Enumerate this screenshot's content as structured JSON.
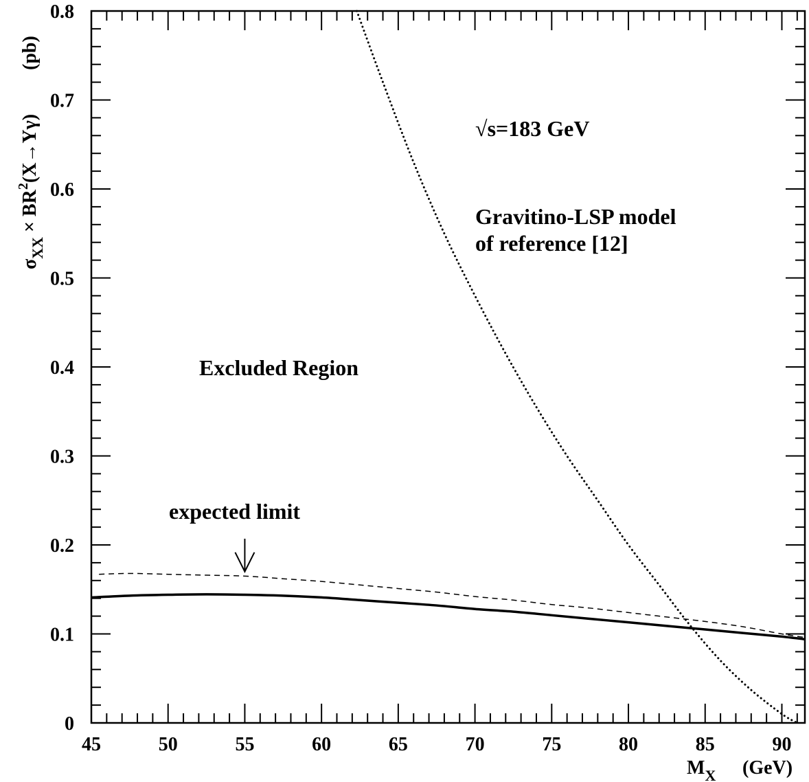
{
  "chart_data": {
    "type": "line",
    "xlabel_main": "M",
    "xlabel_sub": "X",
    "xlabel_unit": "(GeV)",
    "ylabel": {
      "sigma": "σ",
      "sigma_sub": "XX",
      "times_br": " × BR",
      "sup": "2",
      "decay": "(X→Yγ)",
      "unit": "(pb)"
    },
    "xlim": [
      45,
      91.5
    ],
    "ylim": [
      0,
      0.8
    ],
    "x_ticks": [
      45,
      50,
      55,
      60,
      65,
      70,
      75,
      80,
      85,
      90
    ],
    "y_ticks": [
      0,
      0.1,
      0.2,
      0.3,
      0.4,
      0.5,
      0.6,
      0.7,
      0.8
    ],
    "x_tick_labels": [
      "45",
      "50",
      "55",
      "60",
      "65",
      "70",
      "75",
      "80",
      "85",
      "90"
    ],
    "y_tick_labels": [
      "0",
      "0.1",
      "0.2",
      "0.3",
      "0.4",
      "0.5",
      "0.6",
      "0.7",
      "0.8"
    ],
    "series": [
      {
        "style": "solid",
        "x": [
          45,
          47.5,
          50,
          52.5,
          55,
          57.5,
          60,
          62.5,
          65,
          67.5,
          70,
          72.5,
          75,
          77.5,
          80,
          82.5,
          85,
          87.5,
          90,
          91.5
        ],
        "y": [
          0.141,
          0.143,
          0.144,
          0.1445,
          0.144,
          0.143,
          0.141,
          0.138,
          0.135,
          0.132,
          0.128,
          0.125,
          0.121,
          0.117,
          0.113,
          0.109,
          0.105,
          0.101,
          0.097,
          0.094
        ]
      },
      {
        "style": "dashed",
        "label": "expected limit",
        "x": [
          45.5,
          47.5,
          50,
          52.5,
          55,
          57.5,
          60,
          62.5,
          65,
          67.5,
          70,
          72.5,
          75,
          77.5,
          80,
          82.5,
          85,
          87.5,
          90,
          91.5
        ],
        "y": [
          0.167,
          0.168,
          0.167,
          0.166,
          0.165,
          0.162,
          0.159,
          0.155,
          0.151,
          0.147,
          0.142,
          0.138,
          0.133,
          0.129,
          0.124,
          0.119,
          0.114,
          0.108,
          0.1,
          0.096
        ]
      },
      {
        "style": "dotted",
        "label": "Gravitino-LSP model of reference [12]",
        "x": [
          62.3,
          64,
          66,
          68,
          70,
          72,
          74,
          76,
          78,
          80,
          82,
          84,
          86,
          88,
          90,
          91
        ],
        "y": [
          0.8,
          0.72,
          0.63,
          0.55,
          0.48,
          0.415,
          0.355,
          0.3,
          0.25,
          0.2,
          0.155,
          0.11,
          0.07,
          0.037,
          0.01,
          0
        ]
      }
    ],
    "annotations": {
      "energy": "√s=183 GeV",
      "model_line1": "Gravitino-LSP model",
      "model_line2": "of reference [12]",
      "region": "Excluded Region",
      "expected": "expected limit"
    },
    "arrow": {
      "x": 55,
      "y_from": 0.207,
      "y_to": 0.17
    }
  }
}
